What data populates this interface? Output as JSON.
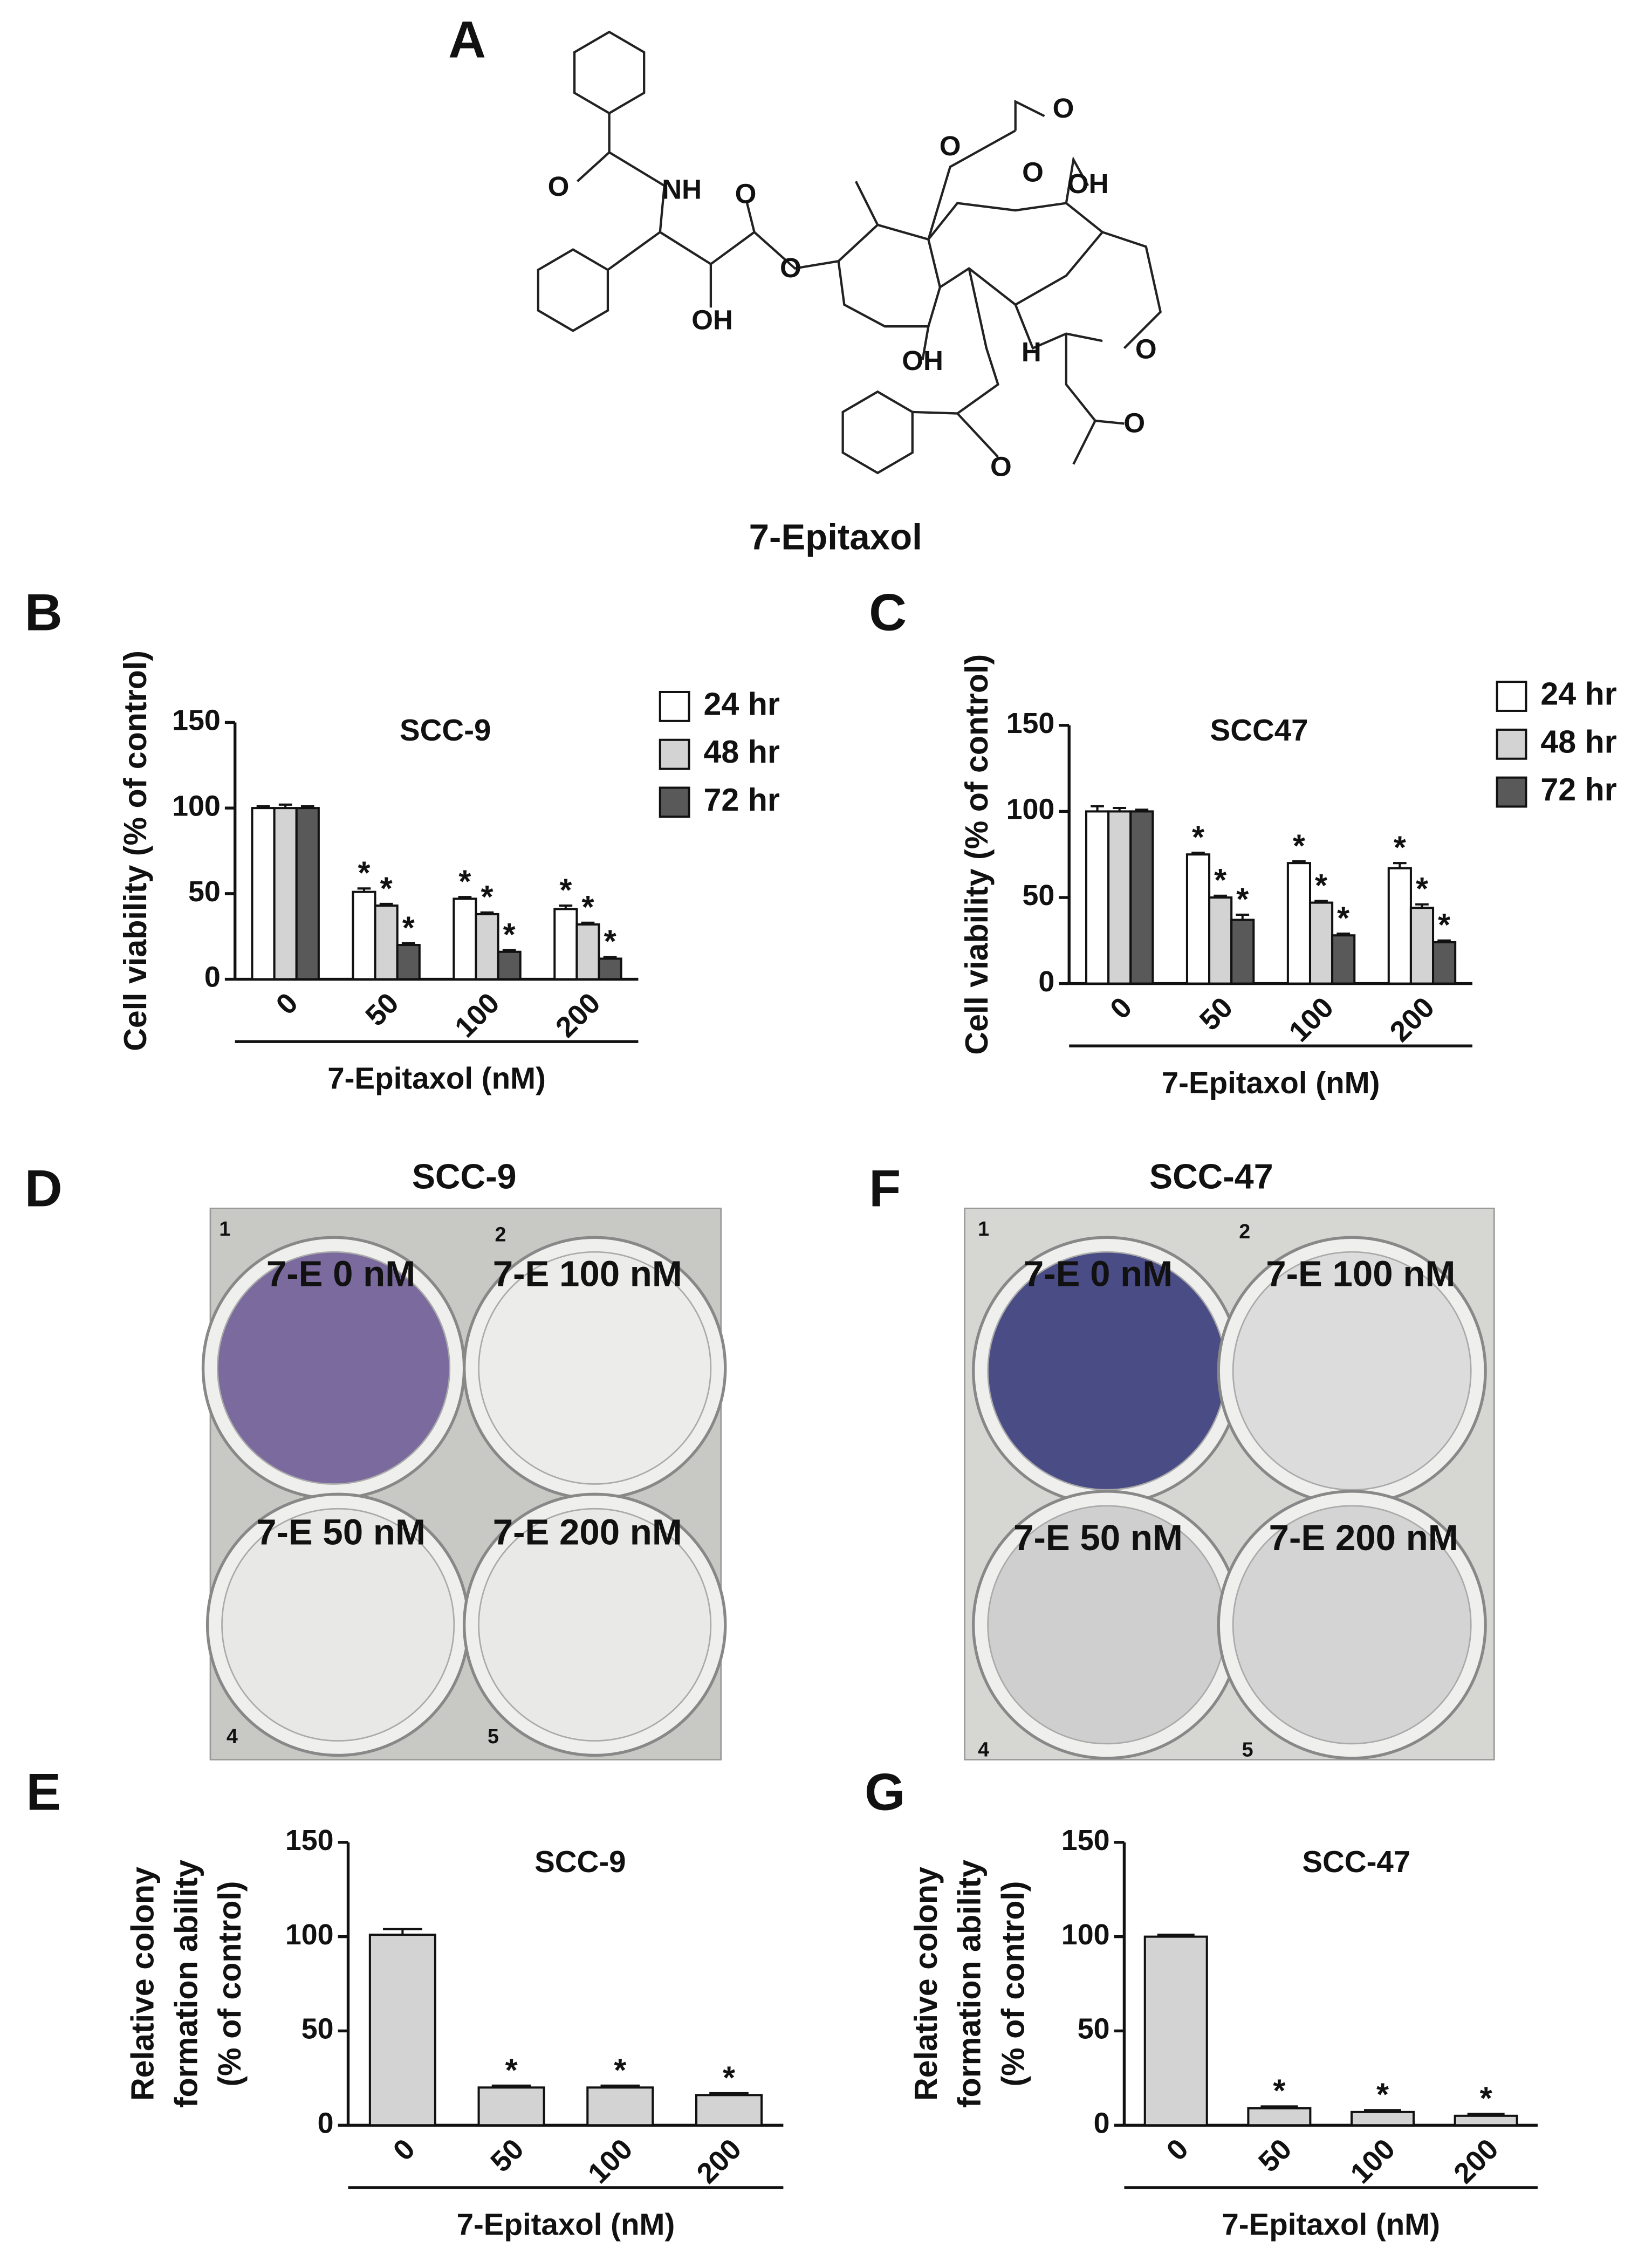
{
  "panels": [
    "A",
    "B",
    "C",
    "D",
    "E",
    "F",
    "G"
  ],
  "structure": {
    "name": "7-Epitaxol",
    "atoms": [
      "O",
      "NH",
      "O",
      "O",
      "OH",
      "O",
      "O",
      "O",
      "OH",
      "OH",
      "H",
      "O",
      "O",
      "O"
    ]
  },
  "plates": [
    {
      "title": "SCC-9",
      "wells": [
        {
          "number": "1",
          "label": "7-E 0 nM"
        },
        {
          "number": "2",
          "label": "7-E 100 nM"
        },
        {
          "number": "4",
          "label": "7-E 50 nM"
        },
        {
          "number": "5",
          "label": "7-E 200 nM"
        }
      ]
    },
    {
      "title": "SCC-47",
      "wells": [
        {
          "number": "1",
          "label": "7-E 0 nM"
        },
        {
          "number": "2",
          "label": "7-E 100 nM"
        },
        {
          "number": "4",
          "label": "7-E 50 nM"
        },
        {
          "number": "5",
          "label": "7-E 200 nM"
        }
      ]
    }
  ],
  "chart_data": [
    {
      "type": "bar",
      "title": "SCC-9",
      "xlabel": "7-Epitaxol (nM)",
      "ylabel": [
        "Cell viability (% of control)"
      ],
      "categories": [
        "0",
        "50",
        "100",
        "200"
      ],
      "ylim": [
        0,
        150
      ],
      "yticks": [
        0,
        50,
        100,
        150
      ],
      "series": [
        {
          "name": "24 hr",
          "color": "#ffffff",
          "values": [
            100,
            51,
            47,
            41
          ],
          "errors": [
            1,
            2,
            1,
            2
          ],
          "annotations": [
            null,
            "*",
            "*",
            "*"
          ]
        },
        {
          "name": "48 hr",
          "color": "#d3d3d3",
          "values": [
            100,
            43,
            38,
            32
          ],
          "errors": [
            2,
            1,
            1,
            1
          ],
          "annotations": [
            null,
            "*",
            "*",
            "*"
          ]
        },
        {
          "name": "72 hr",
          "color": "#595959",
          "values": [
            100,
            20,
            16,
            12
          ],
          "errors": [
            1,
            1,
            1,
            1
          ],
          "annotations": [
            null,
            "*",
            "*",
            "*"
          ]
        }
      ]
    },
    {
      "type": "bar",
      "title": "SCC47",
      "xlabel": "7-Epitaxol (nM)",
      "ylabel": [
        "Cell viability (% of control)"
      ],
      "categories": [
        "0",
        "50",
        "100",
        "200"
      ],
      "ylim": [
        0,
        150
      ],
      "yticks": [
        0,
        50,
        100,
        150
      ],
      "series": [
        {
          "name": "24 hr",
          "color": "#ffffff",
          "values": [
            100,
            75,
            70,
            67
          ],
          "errors": [
            3,
            1,
            1,
            3
          ],
          "annotations": [
            null,
            "*",
            "*",
            "*"
          ]
        },
        {
          "name": "48 hr",
          "color": "#d3d3d3",
          "values": [
            100,
            50,
            47,
            44
          ],
          "errors": [
            2,
            1,
            1,
            2
          ],
          "annotations": [
            null,
            "*",
            "*",
            "*"
          ]
        },
        {
          "name": "72 hr",
          "color": "#595959",
          "values": [
            100,
            37,
            28,
            24
          ],
          "errors": [
            1,
            3,
            1,
            1
          ],
          "annotations": [
            null,
            "*",
            "*",
            "*"
          ]
        }
      ]
    },
    {
      "type": "bar",
      "title": "SCC-9",
      "xlabel": "7-Epitaxol (nM)",
      "ylabel": [
        "Relative colony",
        "formation ability",
        "(% of control)"
      ],
      "categories": [
        "0",
        "50",
        "100",
        "200"
      ],
      "ylim": [
        0,
        150
      ],
      "yticks": [
        0,
        50,
        100,
        150
      ],
      "color": "#d3d3d3",
      "values": [
        101,
        20,
        20,
        16
      ],
      "errors": [
        3,
        1,
        1,
        1
      ],
      "annotations": [
        null,
        "*",
        "*",
        "*"
      ]
    },
    {
      "type": "bar",
      "title": "SCC-47",
      "xlabel": "7-Epitaxol (nM)",
      "ylabel": [
        "Relative colony",
        "formation ability",
        "(% of control)"
      ],
      "categories": [
        "0",
        "50",
        "100",
        "200"
      ],
      "ylim": [
        0,
        150
      ],
      "yticks": [
        0,
        50,
        100,
        150
      ],
      "color": "#d3d3d3",
      "values": [
        100,
        9,
        7,
        5
      ],
      "errors": [
        1,
        1,
        1,
        1
      ],
      "annotations": [
        null,
        "*",
        "*",
        "*"
      ]
    }
  ]
}
